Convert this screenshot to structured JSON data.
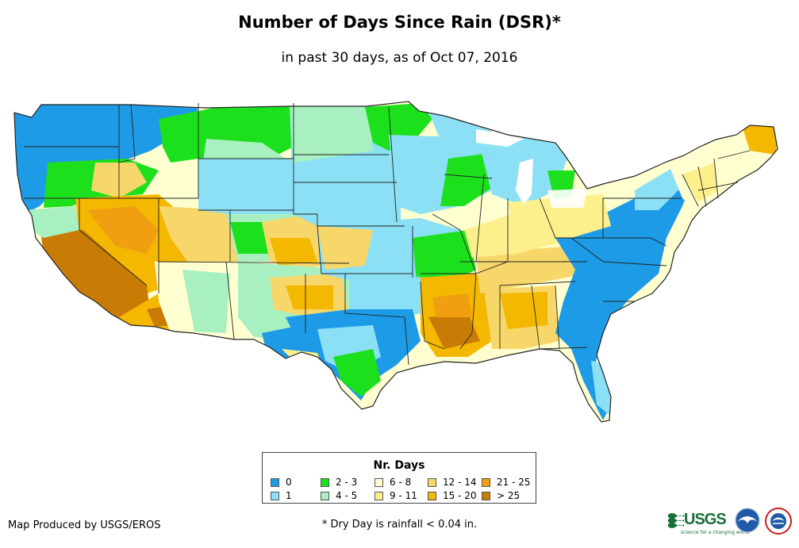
{
  "title": "Number of Days Since Rain (DSR)*",
  "subtitle": "in past 30 days, as of Oct 07, 2016",
  "legend": {
    "title": "Nr. Days",
    "items": [
      {
        "label": "0",
        "color": "#1e9be6"
      },
      {
        "label": "1",
        "color": "#8ce0f5"
      },
      {
        "label": "2 - 3",
        "color": "#1de01d"
      },
      {
        "label": "4 - 5",
        "color": "#a8f0c0"
      },
      {
        "label": "6 - 8",
        "color": "#ffffd0"
      },
      {
        "label": "9 - 11",
        "color": "#fdf08c"
      },
      {
        "label": "12 - 14",
        "color": "#f7d76a"
      },
      {
        "label": "15 - 20",
        "color": "#f5b800"
      },
      {
        "label": "21 - 25",
        "color": "#ef9f10"
      },
      {
        "label": "> 25",
        "color": "#c87c05"
      }
    ]
  },
  "credit": "Map Produced by USGS/EROS",
  "footnote": "* Dry Day is rainfall < 0.04 in.",
  "logos": {
    "usgs": "USGS",
    "usgs_tagline": "science for a changing world",
    "noaa_icon": "noaa-seagull-icon",
    "nws_icon": "national-weather-service-icon"
  }
}
